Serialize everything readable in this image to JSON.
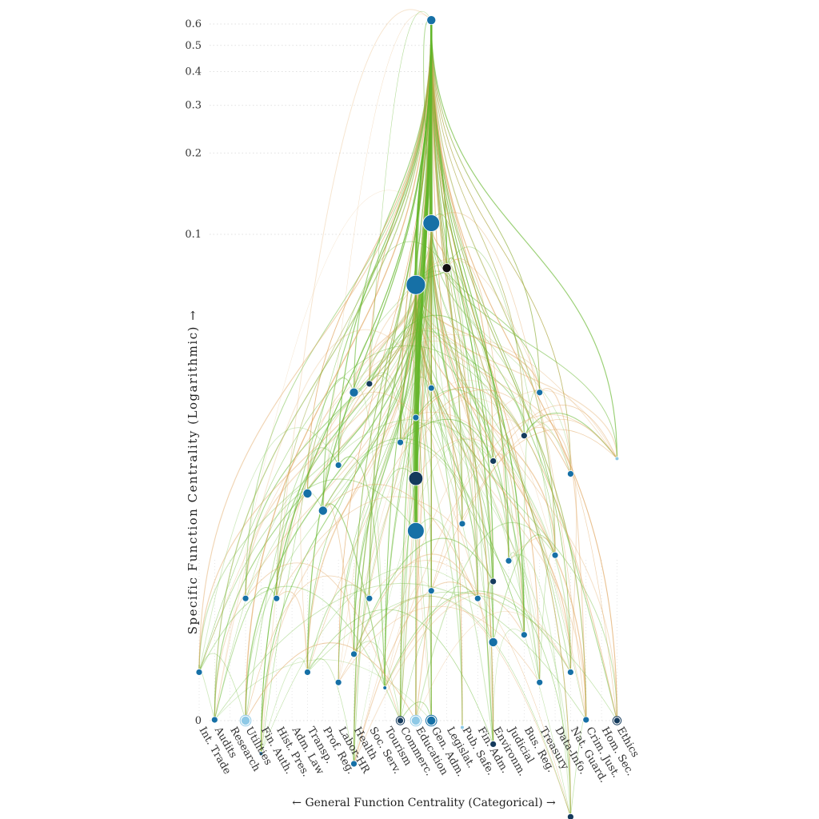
{
  "chart_data": {
    "type": "scatter",
    "subtype": "hierarchical-edge-network",
    "xlabel": "← General Function Centrality (Categorical) →",
    "ylabel": "Specific Function Centrality (Logarithmic) →",
    "y_scale": "log",
    "ylim": [
      0,
      0.6
    ],
    "y_ticks": [
      {
        "label": "0.6",
        "value": 0.6
      },
      {
        "label": "0.5",
        "value": 0.5
      },
      {
        "label": "0.4",
        "value": 0.4
      },
      {
        "label": "0.3",
        "value": 0.3
      },
      {
        "label": "0.2",
        "value": 0.2
      },
      {
        "label": "0.1",
        "value": 0.1
      },
      {
        "label": "0",
        "value": 0
      }
    ],
    "categories": [
      "Int. Trade",
      "Audits",
      "Research",
      "Utilities",
      "Fin. Auth.",
      "Hist. Pres.",
      "Adm. Law",
      "Transp.",
      "Prof. Reg.",
      "Labor-HR",
      "Health",
      "Soc. Serv.",
      "Tourism",
      "Commerc.",
      "Education",
      "Gen. Adm.",
      "Legislat.",
      "Pub. Safe.",
      "Fin. Adm.",
      "Environm.",
      "Judicial",
      "Bus. Reg.",
      "Treasury",
      "Data-Info.",
      "Nat. Guard.",
      "Crim. Just.",
      "Hom. Sec.",
      "Ethics"
    ],
    "edge_colors": {
      "green": "#62b62a",
      "orange": "#e0a45c"
    },
    "node_colors": {
      "blue": "#1670a6",
      "light": "#8ec9e6",
      "dark": "#143a5c",
      "black": "#111111"
    },
    "grid": true,
    "nodes": [
      {
        "category": "Gen. Adm.",
        "value": 0.62,
        "size": 3,
        "shade": "blue"
      },
      {
        "category": "Gen. Adm.",
        "value": 0.11,
        "size": 6,
        "shade": "blue"
      },
      {
        "category": "Education",
        "value": 0.065,
        "size": 7,
        "shade": "blue"
      },
      {
        "category": "Legislat.",
        "value": 0.075,
        "size": 3,
        "shade": "black"
      },
      {
        "category": "Soc. Serv.",
        "value": 0.028,
        "size": 2,
        "shade": "dark"
      },
      {
        "category": "Health",
        "value": 0.026,
        "size": 3,
        "shade": "blue"
      },
      {
        "category": "Education",
        "value": 0.0125,
        "size": 5,
        "shade": "dark"
      },
      {
        "category": "Education",
        "value": 0.008,
        "size": 6,
        "shade": "blue"
      },
      {
        "category": "Education",
        "value": 0.021,
        "size": 2,
        "shade": "blue"
      },
      {
        "category": "Gen. Adm.",
        "value": 0.027,
        "size": 2,
        "shade": "blue"
      },
      {
        "category": "Commerc.",
        "value": 0.017,
        "size": 2,
        "shade": "blue"
      },
      {
        "category": "Labor-HR",
        "value": 0.014,
        "size": 2,
        "shade": "blue"
      },
      {
        "category": "Transp.",
        "value": 0.011,
        "size": 3,
        "shade": "blue"
      },
      {
        "category": "Prof. Reg.",
        "value": 0.0095,
        "size": 3,
        "shade": "blue"
      },
      {
        "category": "Treasury",
        "value": 0.026,
        "size": 2,
        "shade": "blue"
      },
      {
        "category": "Bus. Reg.",
        "value": 0.018,
        "size": 2,
        "shade": "dark"
      },
      {
        "category": "Environm.",
        "value": 0.0145,
        "size": 2,
        "shade": "dark"
      },
      {
        "category": "Nat. Guard.",
        "value": 0.013,
        "size": 2,
        "shade": "blue"
      },
      {
        "category": "Ethics",
        "value": 0.0148,
        "size": 1,
        "shade": "light"
      },
      {
        "category": "Pub. Safe.",
        "value": 0.0085,
        "size": 2,
        "shade": "blue"
      },
      {
        "category": "Environm.",
        "value": 0.0052,
        "size": 2,
        "shade": "dark"
      },
      {
        "category": "Judicial",
        "value": 0.0062,
        "size": 2,
        "shade": "blue"
      },
      {
        "category": "Data-Info.",
        "value": 0.0065,
        "size": 2,
        "shade": "blue"
      },
      {
        "category": "Utilities",
        "value": 0.0045,
        "size": 2,
        "shade": "blue"
      },
      {
        "category": "Hist. Pres.",
        "value": 0.0045,
        "size": 2,
        "shade": "blue"
      },
      {
        "category": "Soc. Serv.",
        "value": 0.0045,
        "size": 2,
        "shade": "blue"
      },
      {
        "category": "Gen. Adm.",
        "value": 0.0048,
        "size": 2,
        "shade": "blue"
      },
      {
        "category": "Fin. Adm.",
        "value": 0.0045,
        "size": 2,
        "shade": "blue"
      },
      {
        "category": "Bus. Reg.",
        "value": 0.0033,
        "size": 2,
        "shade": "blue"
      },
      {
        "category": "Environm.",
        "value": 0.0031,
        "size": 3,
        "shade": "blue"
      },
      {
        "category": "Int. Trade",
        "value": 0.0024,
        "size": 2,
        "shade": "blue"
      },
      {
        "category": "Audits",
        "value": 0.0016,
        "size": 2,
        "shade": "blue"
      },
      {
        "category": "Transp.",
        "value": 0.0024,
        "size": 2,
        "shade": "blue"
      },
      {
        "category": "Labor-HR",
        "value": 0.0022,
        "size": 2,
        "shade": "blue"
      },
      {
        "category": "Health",
        "value": 0.0028,
        "size": 2,
        "shade": "blue"
      },
      {
        "category": "Tourism",
        "value": 0.0021,
        "size": 1,
        "shade": "blue"
      },
      {
        "category": "Treasury",
        "value": 0.0022,
        "size": 2,
        "shade": "blue"
      },
      {
        "category": "Nat. Guard.",
        "value": 0.0024,
        "size": 2,
        "shade": "blue"
      },
      {
        "category": "Crim. Just.",
        "value": 0.0016,
        "size": 2,
        "shade": "blue"
      },
      {
        "category": "Health",
        "value": 0.0011,
        "size": 2,
        "shade": "blue"
      },
      {
        "category": "Fin. Auth.",
        "value": 0.0012,
        "size": 1,
        "shade": "blue"
      },
      {
        "category": "Pub. Safe.",
        "value": 0.0015,
        "size": 1,
        "shade": "light"
      },
      {
        "category": "Environm.",
        "value": 0.0013,
        "size": 2,
        "shade": "dark"
      },
      {
        "category": "Nat. Guard.",
        "value": 0.0007,
        "size": 2,
        "shade": "dark"
      },
      {
        "category": "Utilities",
        "value": 0,
        "size": 3,
        "shade": "light"
      },
      {
        "category": "Commerc.",
        "value": 0,
        "size": 2,
        "shade": "dark"
      },
      {
        "category": "Education",
        "value": 0,
        "size": 3,
        "shade": "light"
      },
      {
        "category": "Gen. Adm.",
        "value": 0,
        "size": 3,
        "shade": "blue"
      },
      {
        "category": "Ethics",
        "value": 0,
        "size": 2,
        "shade": "dark"
      }
    ]
  }
}
